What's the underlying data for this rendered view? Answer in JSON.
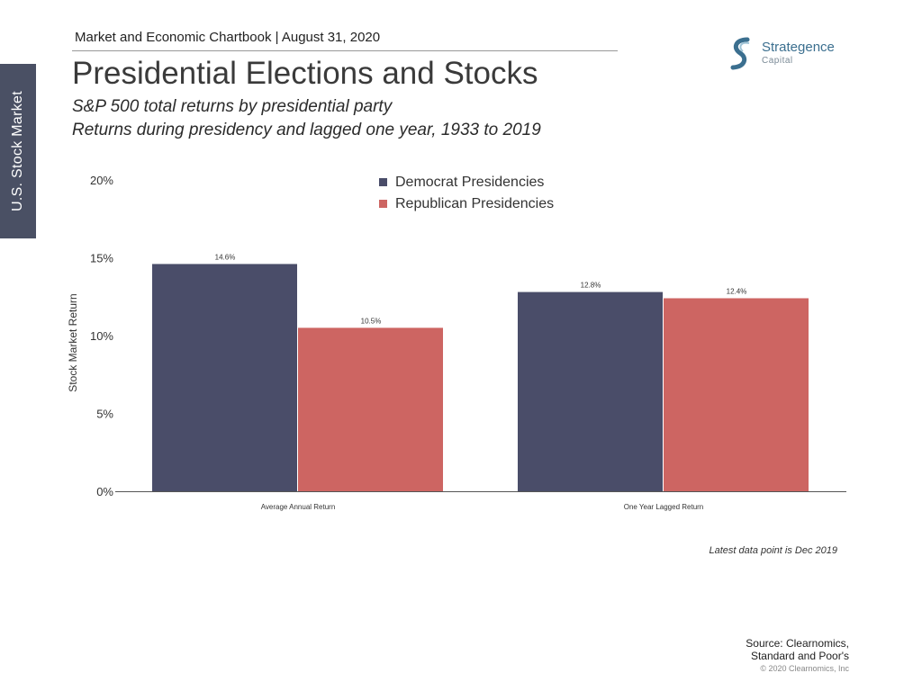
{
  "side_tab": "U.S. Stock Market",
  "header": {
    "chartbook": "Market and Economic Chartbook | August 31, 2020",
    "logo_name": "Strategence",
    "logo_sub": "Capital"
  },
  "title": "Presidential Elections and Stocks",
  "subtitle_1": "S&P 500 total returns by presidential party",
  "subtitle_2": "Returns during presidency and lagged one year, 1933 to 2019",
  "colors": {
    "democrat": "#4a4d69",
    "republican": "#cd6562",
    "side_tab": "#4a5064",
    "logo": "#3b6f8f"
  },
  "chart_data": {
    "type": "bar",
    "categories": [
      "Average Annual Return",
      "One Year Lagged Return"
    ],
    "series": [
      {
        "name": "Democrat Presidencies",
        "values": [
          14.6,
          12.8
        ],
        "labels": [
          "14.6%",
          "12.8%"
        ]
      },
      {
        "name": "Republican Presidencies",
        "values": [
          10.5,
          12.4
        ],
        "labels": [
          "10.5%",
          "12.4%"
        ]
      }
    ],
    "ylabel": "Stock Market Return",
    "ylim": [
      0,
      20
    ],
    "yticks": [
      0,
      5,
      10,
      15,
      20
    ],
    "ytick_labels": [
      "0%",
      "5%",
      "10%",
      "15%",
      "20%"
    ],
    "legend_position": "top-center",
    "grid": false
  },
  "note": "Latest data point is Dec 2019",
  "source_1": "Source: Clearnomics,",
  "source_2": "Standard and Poor's",
  "copyright": "© 2020 Clearnomics, Inc"
}
